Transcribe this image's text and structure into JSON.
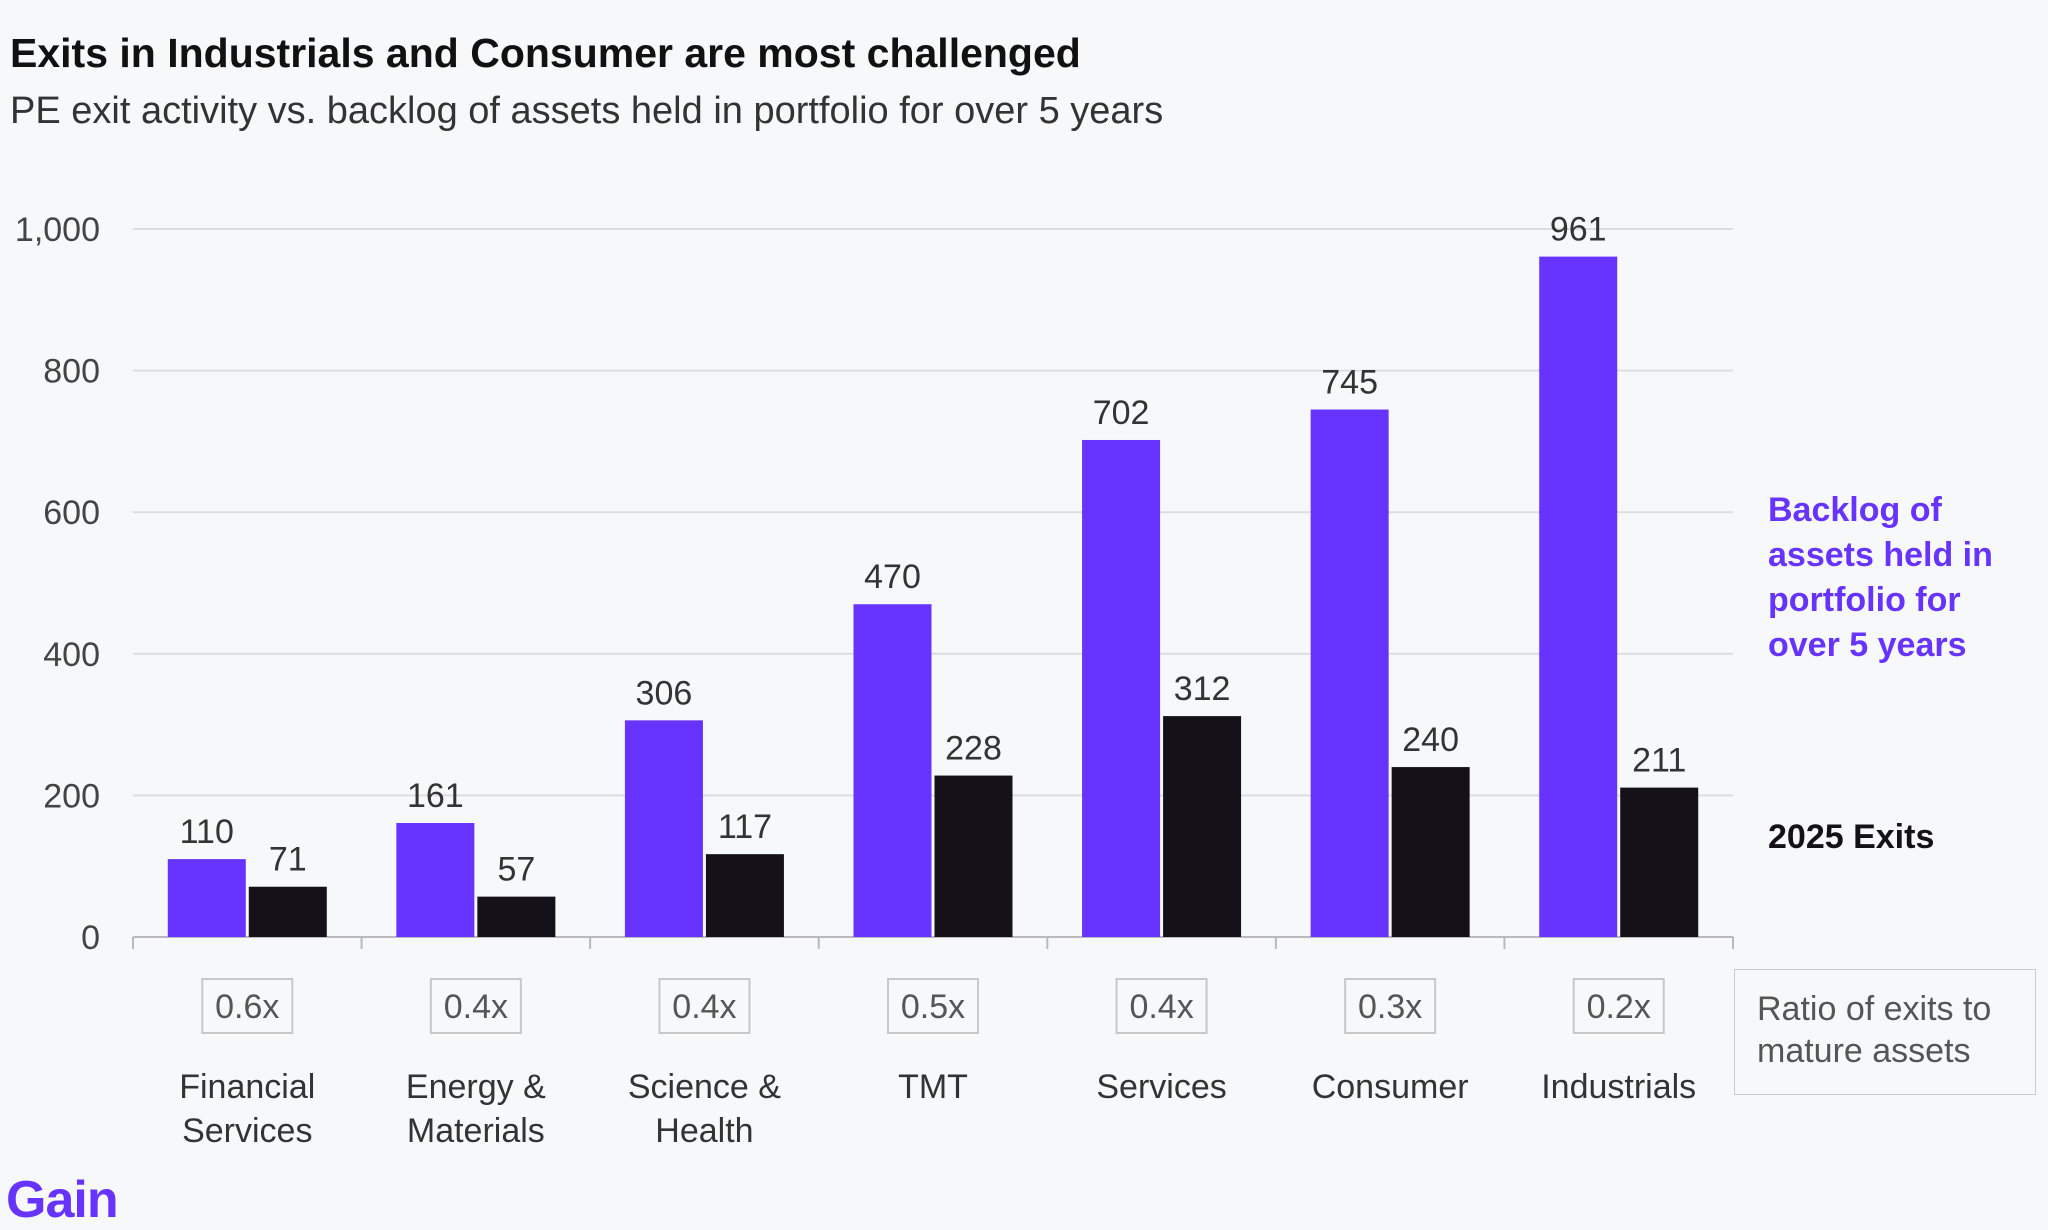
{
  "title": "Exits in Industrials and Consumer are most challenged",
  "subtitle": "PE exit activity vs. backlog of assets held in portfolio for over 5 years",
  "colors": {
    "backlog": "#6633ff",
    "exits": "#141118",
    "grid": "#dcdde3",
    "axis": "#b9b9be"
  },
  "legend": {
    "backlog": "Backlog of assets held in portfolio for over 5 years",
    "exits": "2025 Exits",
    "ratio": "Ratio of exits to mature assets"
  },
  "logo": "Gain",
  "chart_data": {
    "type": "bar",
    "categories": [
      [
        "Financial",
        "Services"
      ],
      [
        "Energy &",
        "Materials"
      ],
      [
        "Science &",
        "Health"
      ],
      [
        "TMT"
      ],
      [
        "Services"
      ],
      [
        "Consumer"
      ],
      [
        "Industrials"
      ]
    ],
    "series": [
      {
        "name": "Backlog of assets held in portfolio for over 5 years",
        "values": [
          110,
          161,
          306,
          470,
          702,
          745,
          961
        ]
      },
      {
        "name": "2025 Exits",
        "values": [
          71,
          57,
          117,
          228,
          312,
          240,
          211
        ]
      }
    ],
    "value_labels": [
      [
        "110",
        "161",
        "306",
        "470",
        "702",
        "745",
        "961"
      ],
      [
        "71",
        "57",
        "117",
        "228",
        "312",
        "240",
        "211"
      ]
    ],
    "ratios": [
      "0.6x",
      "0.4x",
      "0.4x",
      "0.5x",
      "0.4x",
      "0.3x",
      "0.2x"
    ],
    "yticks": [
      0,
      200,
      400,
      600,
      800,
      1000
    ],
    "ytick_labels": [
      "0",
      "200",
      "400",
      "600",
      "800",
      "1,000"
    ],
    "ylim": [
      0,
      1000
    ],
    "grid": true,
    "legend_position": "right"
  }
}
